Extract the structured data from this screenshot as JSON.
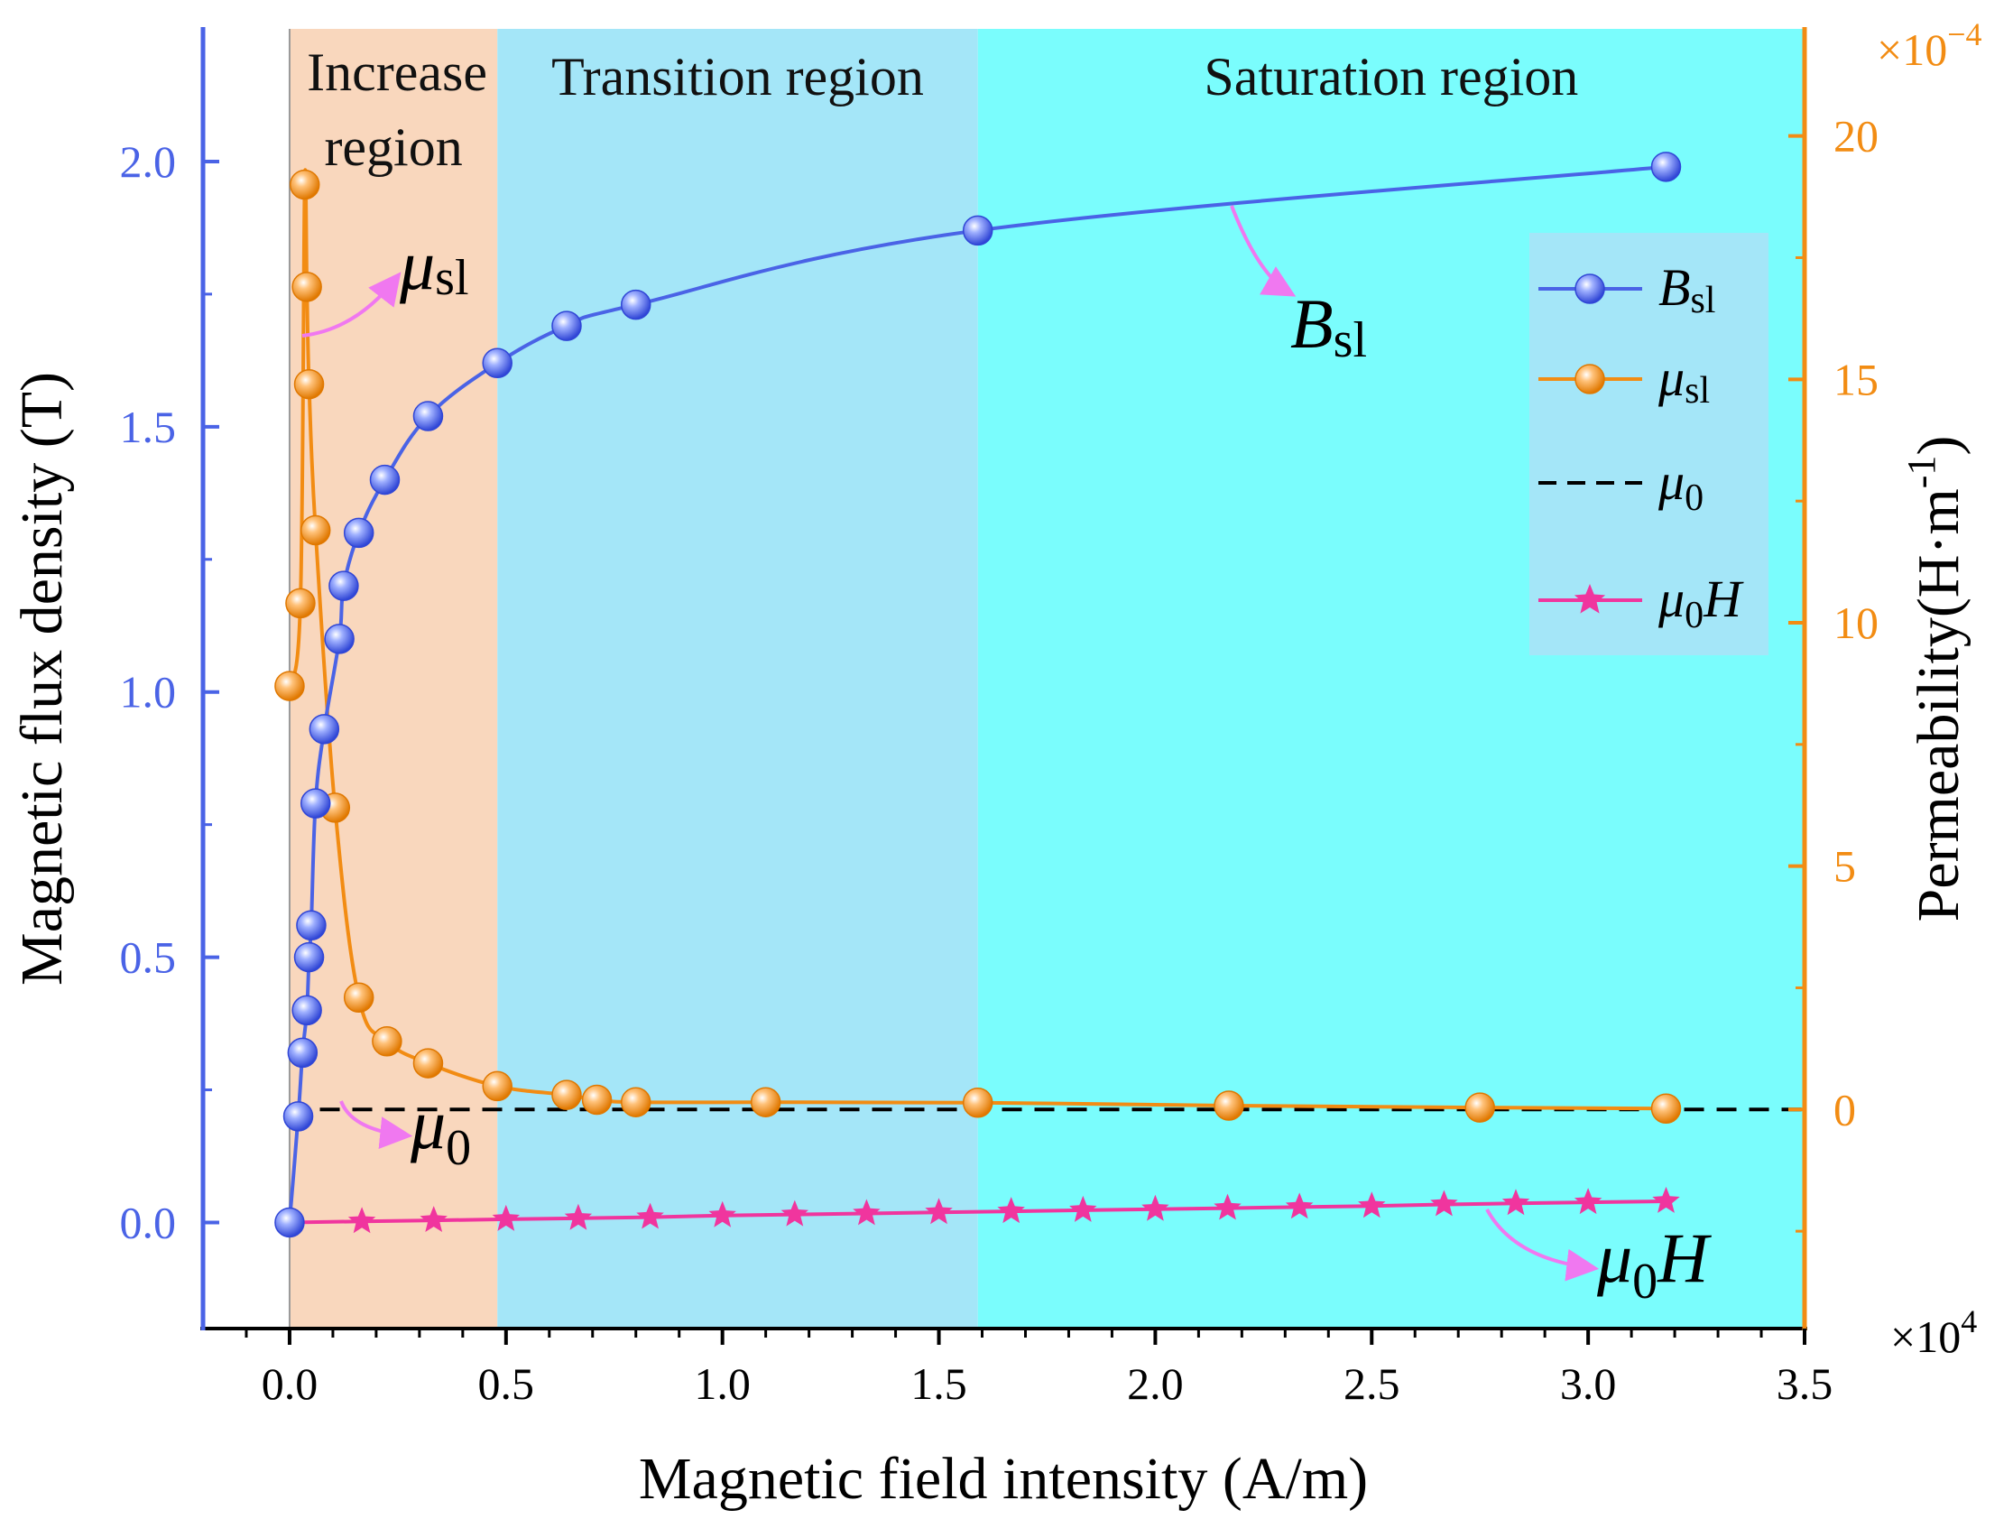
{
  "chart_data": {
    "type": "line",
    "x_axis": {
      "label": "Magnetic field intensity (A/m)",
      "range": [
        -0.2,
        3.5
      ],
      "ticks": [
        0.0,
        0.5,
        1.0,
        1.5,
        2.0,
        2.5,
        3.0,
        3.5
      ],
      "tick_labels": [
        "0.0",
        "0.5",
        "1.0",
        "1.5",
        "2.0",
        "2.5",
        "3.0",
        "3.5"
      ],
      "scale_note": "×10",
      "scale_exponent": "4"
    },
    "y_left": {
      "label": "Magnetic flux density (T)",
      "range": [
        -0.2,
        2.25
      ],
      "ticks": [
        0.0,
        0.5,
        1.0,
        1.5,
        2.0
      ],
      "tick_labels": [
        "0.0",
        "0.5",
        "1.0",
        "1.5",
        "2.0"
      ],
      "color": "#4A63E6"
    },
    "y_right": {
      "label": "Permeability(H·m",
      "label_superscript": "-1",
      "label_close": ")",
      "range": [
        -4.5,
        22.2
      ],
      "ticks": [
        0,
        5,
        10,
        15,
        20
      ],
      "tick_labels": [
        "0",
        "5",
        "10",
        "15",
        "20"
      ],
      "scale_note": "×10",
      "scale_exponent": "−4",
      "color": "#F28C13"
    },
    "regions": [
      {
        "name": "Increase",
        "name_line2": "region",
        "x_start": 0.0,
        "x_end": 0.48,
        "color": "#F9D7BD"
      },
      {
        "name": "Transition region",
        "x_start": 0.48,
        "x_end": 1.59,
        "color": "#A4E6F8"
      },
      {
        "name": "Saturation region",
        "x_start": 1.59,
        "x_end": 3.5,
        "color": "#7AFDFD"
      }
    ],
    "series": [
      {
        "name": "B",
        "subscript": "sl",
        "axis": "left",
        "color": "#4A63E6",
        "marker": "circle",
        "x": [
          0.0,
          0.02,
          0.03,
          0.04,
          0.045,
          0.05,
          0.06,
          0.08,
          0.115,
          0.125,
          0.16,
          0.22,
          0.32,
          0.48,
          0.64,
          0.8,
          1.59,
          3.18
        ],
        "y": [
          0.0,
          0.2,
          0.32,
          0.4,
          0.5,
          0.56,
          0.79,
          0.93,
          1.1,
          1.2,
          1.3,
          1.4,
          1.52,
          1.62,
          1.69,
          1.73,
          1.87,
          1.99
        ]
      },
      {
        "name": "μ",
        "subscript": "sl",
        "axis": "right",
        "color": "#F28C13",
        "marker": "circle",
        "x": [
          0.0,
          0.025,
          0.035,
          0.04,
          0.045,
          0.06,
          0.105,
          0.16,
          0.225,
          0.32,
          0.48,
          0.64,
          0.71,
          0.8,
          1.1,
          1.59,
          2.17,
          2.75,
          3.18
        ],
        "y": [
          8.7,
          10.4,
          19.0,
          16.9,
          14.9,
          11.9,
          6.2,
          2.3,
          1.4,
          0.95,
          0.48,
          0.3,
          0.2,
          0.15,
          0.15,
          0.14,
          0.08,
          0.04,
          0.02
        ]
      },
      {
        "name": "μ",
        "subscript": "0",
        "axis": "right",
        "color": "#000000",
        "style": "dashed",
        "x": [
          0.07,
          3.5
        ],
        "y": [
          0.0,
          0.0
        ]
      },
      {
        "name": "μ",
        "subscript": "0",
        "suffix": "H",
        "axis": "left",
        "color": "#F0359E",
        "marker": "star",
        "x": [
          0.0,
          0.167,
          0.333,
          0.5,
          0.667,
          0.833,
          1.0,
          1.167,
          1.333,
          1.5,
          1.667,
          1.833,
          2.0,
          2.167,
          2.333,
          2.5,
          2.667,
          2.833,
          3.0,
          3.18
        ],
        "y": [
          0.0,
          0.002,
          0.004,
          0.006,
          0.008,
          0.01,
          0.013,
          0.015,
          0.017,
          0.019,
          0.021,
          0.023,
          0.025,
          0.027,
          0.029,
          0.031,
          0.034,
          0.036,
          0.038,
          0.04
        ]
      }
    ],
    "annotations": [
      {
        "text": "μ",
        "subscript": "sl",
        "target_series": 1
      },
      {
        "text": "B",
        "subscript": "sl",
        "target_series": 0
      },
      {
        "text": "μ",
        "subscript": "0",
        "target_series": 2
      },
      {
        "text": "μ",
        "subscript": "0",
        "suffix": "H",
        "target_series": 3
      }
    ],
    "legend": {
      "position": "top-right"
    }
  }
}
